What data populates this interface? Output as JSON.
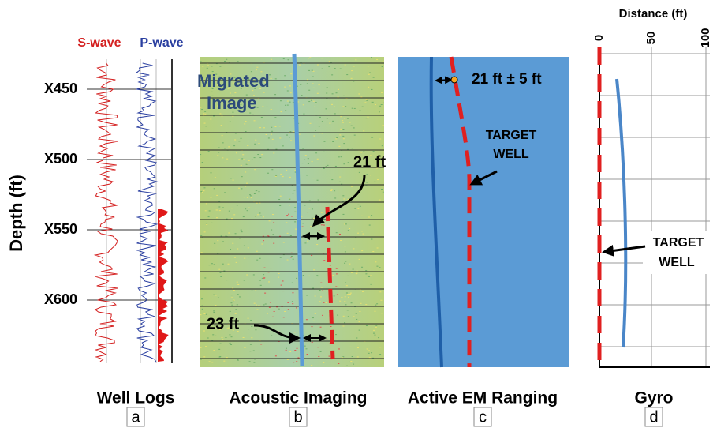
{
  "depth_axis": {
    "label": "Depth (ft)",
    "ticks": [
      "X450",
      "X500",
      "X550",
      "X600"
    ]
  },
  "panels": [
    {
      "headers": [
        "S-wave",
        "P-wave"
      ],
      "caption": "Well Logs",
      "letter": "a"
    },
    {
      "title_lines": [
        "Migrated",
        "Image"
      ],
      "annotations": [
        "21 ft",
        "23 ft"
      ],
      "caption": "Acoustic Imaging",
      "letter": "b"
    },
    {
      "annotation": "21 ft ± 5 ft",
      "target_lines": [
        "TARGET",
        "WELL"
      ],
      "caption": "Active EM Ranging",
      "letter": "c"
    },
    {
      "axis_title": "Distance (ft)",
      "ticks": [
        "0",
        "50",
        "100"
      ],
      "target_lines": [
        "TARGET",
        "WELL"
      ],
      "caption": "Gyro",
      "letter": "d"
    }
  ]
}
